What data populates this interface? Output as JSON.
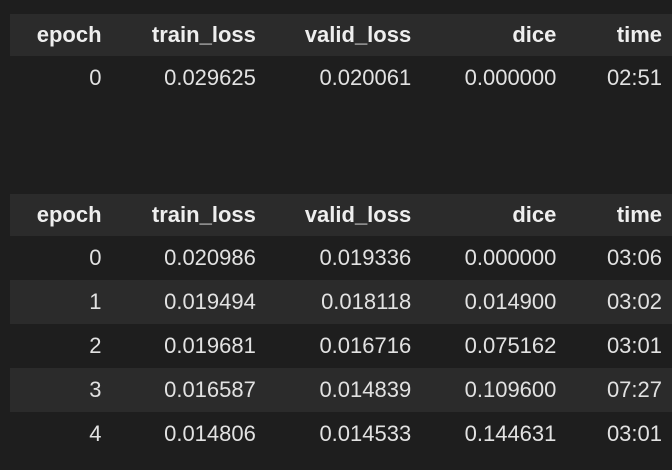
{
  "columns": [
    "epoch",
    "train_loss",
    "valid_loss",
    "dice",
    "time"
  ],
  "table1": {
    "rows": [
      [
        "0",
        "0.029625",
        "0.020061",
        "0.000000",
        "02:51"
      ]
    ]
  },
  "table2": {
    "rows": [
      [
        "0",
        "0.020986",
        "0.019336",
        "0.000000",
        "03:06"
      ],
      [
        "1",
        "0.019494",
        "0.018118",
        "0.014900",
        "03:02"
      ],
      [
        "2",
        "0.019681",
        "0.016716",
        "0.075162",
        "03:01"
      ],
      [
        "3",
        "0.016587",
        "0.014839",
        "0.109600",
        "07:27"
      ],
      [
        "4",
        "0.014806",
        "0.014533",
        "0.144631",
        "03:01"
      ]
    ]
  },
  "colors": {
    "background": "#1e1e1e",
    "header_row": "#2b2b2b",
    "striped_row": "#2b2b2b",
    "text": "#e8e8e8"
  }
}
